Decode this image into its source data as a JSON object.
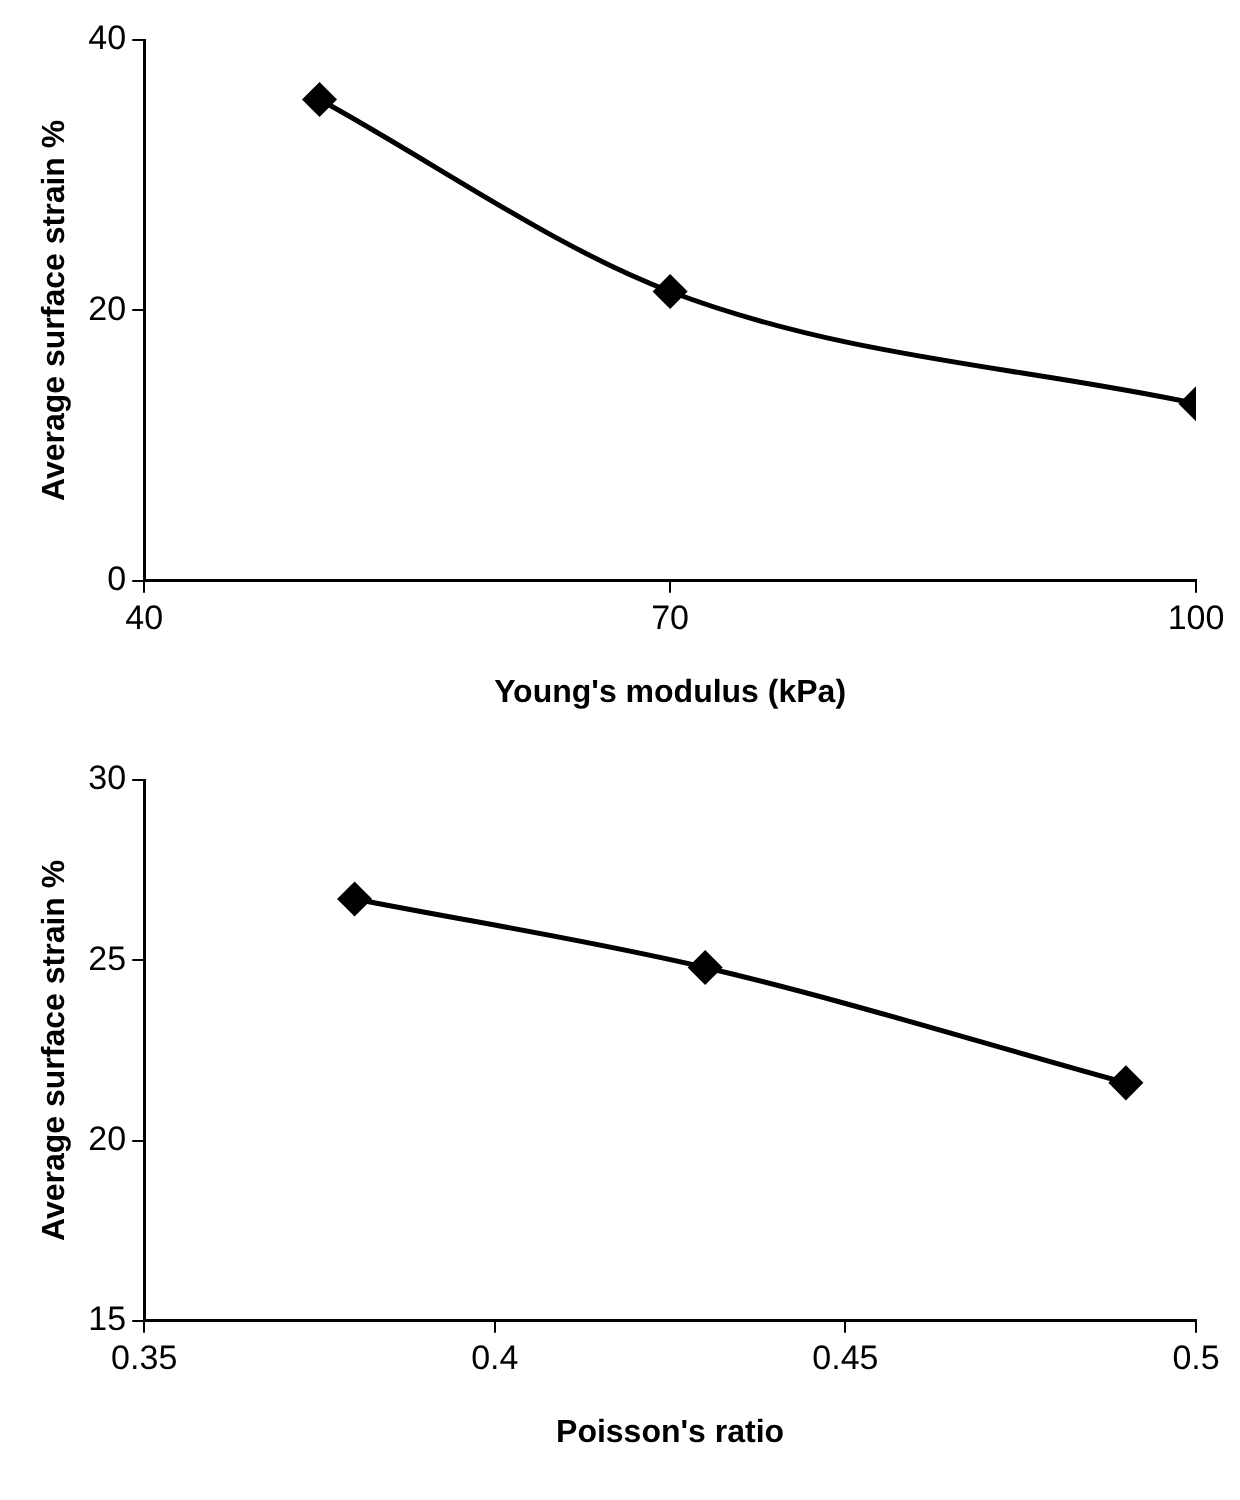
{
  "chart_data": [
    {
      "type": "line",
      "xlabel": "Young's modulus (kPa)",
      "ylabel": "Average surface strain %",
      "x": [
        50,
        70,
        100
      ],
      "series": [
        {
          "color": "#000000",
          "values": [
            35.6,
            21.4,
            13.1
          ]
        }
      ],
      "xlim": [
        40,
        100
      ],
      "xticks": [
        40,
        70,
        100
      ],
      "ylim": [
        0,
        40
      ],
      "yticks": [
        0,
        20,
        40
      ],
      "grid": false,
      "legend": false,
      "marker": "diamond",
      "line_style": "solid"
    },
    {
      "type": "line",
      "xlabel": "Poisson's ratio",
      "ylabel": "Average surface strain %",
      "x": [
        0.38,
        0.43,
        0.49
      ],
      "series": [
        {
          "color": "#000000",
          "values": [
            26.7,
            24.8,
            21.6
          ]
        }
      ],
      "xlim": [
        0.35,
        0.5
      ],
      "xticks": [
        0.35,
        0.4,
        0.45,
        0.5
      ],
      "ylim": [
        15,
        30
      ],
      "yticks": [
        15,
        20,
        25,
        30
      ],
      "grid": false,
      "legend": false,
      "marker": "diamond",
      "line_style": "solid"
    }
  ]
}
